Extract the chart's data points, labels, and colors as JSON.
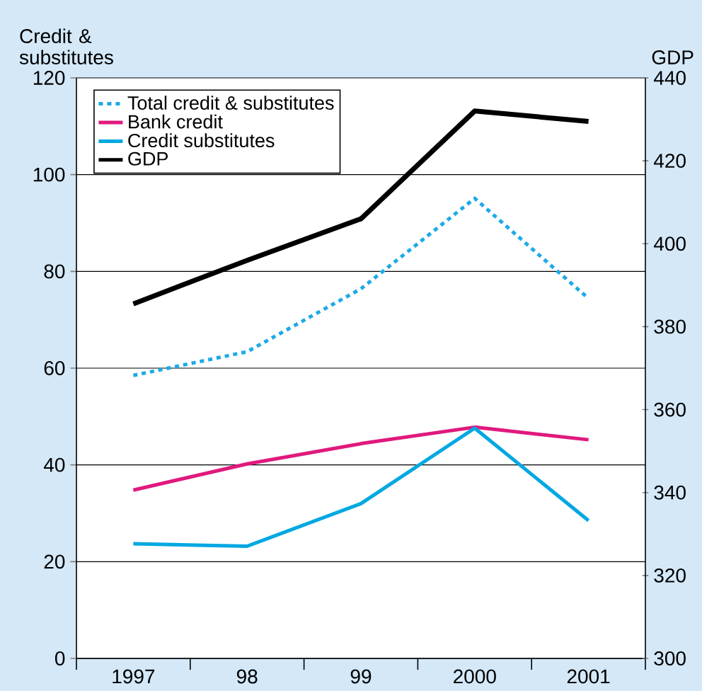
{
  "chart_data": {
    "type": "line",
    "ylabel": "Credit & substitutes",
    "y2label": "GDP",
    "categories": [
      "1997",
      "98",
      "99",
      "2000",
      "2001"
    ],
    "series": [
      {
        "name": "Total credit & substitutes",
        "color": "#1eaae6",
        "line_style": "dotted",
        "values": [
          58.5,
          63.4,
          76.4,
          95.1,
          74.4
        ]
      },
      {
        "name": "Bank credit",
        "color": "#e0197d",
        "values": [
          34.8,
          40.2,
          44.4,
          47.8,
          45.2
        ]
      },
      {
        "name": "Credit substitutes",
        "color": "#00a8e1",
        "values": [
          23.7,
          23.2,
          32.0,
          47.6,
          28.5
        ]
      },
      {
        "name": "GDP",
        "color": "#000000",
        "axis": "y2",
        "values": [
          385.5,
          396,
          406,
          432,
          429.5
        ]
      }
    ],
    "ylim": [
      0,
      120
    ],
    "yticks": [
      0,
      20,
      40,
      60,
      80,
      100,
      120
    ],
    "y2lim": [
      300,
      440
    ],
    "y2ticks": [
      300,
      320,
      340,
      360,
      380,
      400,
      420,
      440
    ],
    "grid": "y",
    "legend": "top left"
  }
}
